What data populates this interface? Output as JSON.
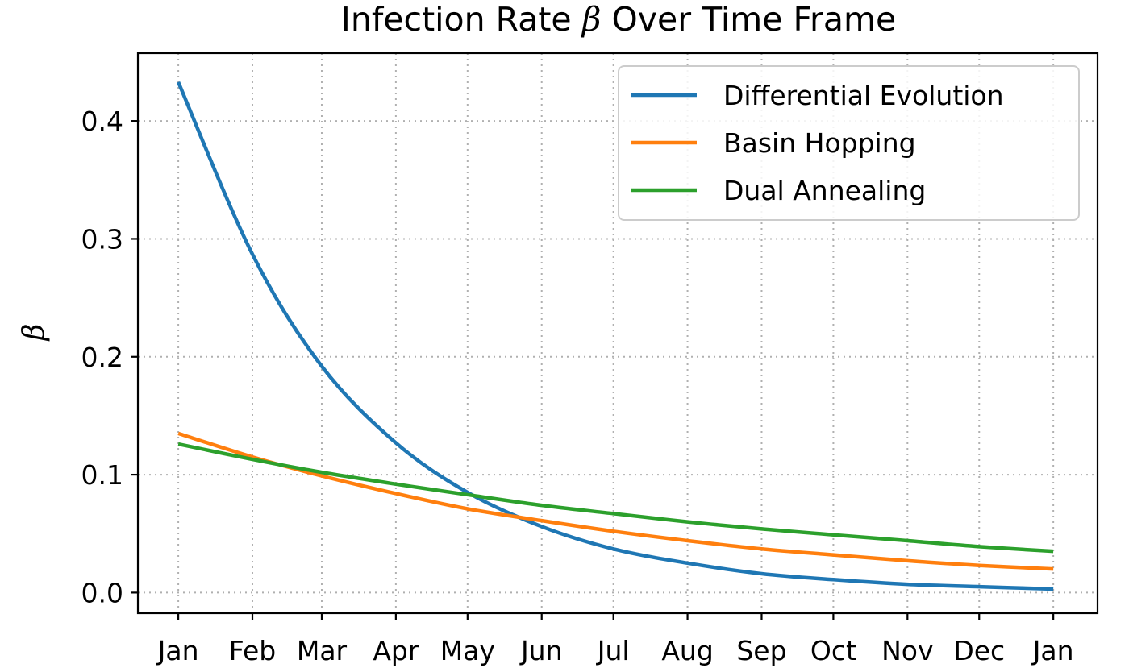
{
  "chart_data": {
    "type": "line",
    "title_prefix": "Infection Rate ",
    "title_symbol": "β",
    "title_suffix": " Over Time Frame",
    "xlabel": "",
    "ylabel": "β",
    "x_tick_labels": [
      "Jan",
      "Feb",
      "Mar",
      "Apr",
      "May",
      "Jun",
      "Jul",
      "Aug",
      "Sep",
      "Oct",
      "Nov",
      "Dec",
      "Jan"
    ],
    "x_tick_days": [
      0,
      31,
      60,
      91,
      121,
      152,
      182,
      213,
      244,
      274,
      305,
      335,
      366
    ],
    "y_ticks": [
      0.0,
      0.1,
      0.2,
      0.3,
      0.4
    ],
    "y_tick_labels": [
      "0.0",
      "0.1",
      "0.2",
      "0.3",
      "0.4"
    ],
    "xlim": [
      -16.9,
      384.5
    ],
    "ylim": [
      -0.0175,
      0.4575
    ],
    "grid": true,
    "legend_position": "top-right",
    "series": [
      {
        "name": "Differential Evolution",
        "color": "#1f77b4",
        "x": [
          0,
          31,
          60,
          91,
          121,
          152,
          182,
          213,
          244,
          274,
          305,
          335,
          366
        ],
        "y": [
          0.433,
          0.287,
          0.192,
          0.127,
          0.085,
          0.056,
          0.037,
          0.025,
          0.016,
          0.011,
          0.007,
          0.005,
          0.003
        ]
      },
      {
        "name": "Basin Hopping",
        "color": "#ff7f0e",
        "x": [
          0,
          31,
          60,
          91,
          121,
          152,
          182,
          213,
          244,
          274,
          305,
          335,
          366
        ],
        "y": [
          0.135,
          0.115,
          0.099,
          0.084,
          0.071,
          0.061,
          0.052,
          0.044,
          0.037,
          0.032,
          0.027,
          0.023,
          0.02
        ]
      },
      {
        "name": "Dual Annealing",
        "color": "#2ca02c",
        "x": [
          0,
          31,
          60,
          91,
          121,
          152,
          182,
          213,
          244,
          274,
          305,
          335,
          366
        ],
        "y": [
          0.126,
          0.113,
          0.102,
          0.092,
          0.083,
          0.074,
          0.067,
          0.06,
          0.054,
          0.049,
          0.044,
          0.039,
          0.035
        ]
      }
    ]
  }
}
